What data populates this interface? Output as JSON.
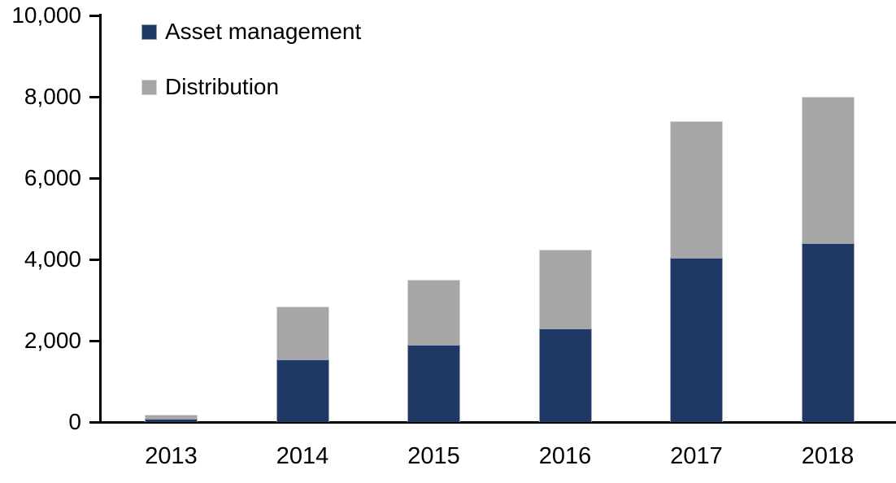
{
  "chart_data": {
    "type": "bar",
    "stacked": true,
    "categories": [
      "2013",
      "2014",
      "2015",
      "2016",
      "2017",
      "2018"
    ],
    "series": [
      {
        "name": "Asset management",
        "color": "#1F3864",
        "values": [
          75,
          1550,
          1900,
          2300,
          4050,
          4400
        ]
      },
      {
        "name": "Distribution",
        "color": "#A6A6A6",
        "values": [
          105,
          1300,
          1600,
          1950,
          3350,
          3600
        ]
      }
    ],
    "totals": [
      180,
      2850,
      3500,
      4250,
      7400,
      8000
    ],
    "ylim": [
      0,
      10000
    ],
    "ytick_step": 2000,
    "ytick_labels": [
      "0",
      "2,000",
      "4,000",
      "6,000",
      "8,000",
      "10,000"
    ],
    "grid": false,
    "legend_position": "top-left",
    "axis_color": "#000000",
    "title": "",
    "xlabel": "",
    "ylabel": ""
  }
}
